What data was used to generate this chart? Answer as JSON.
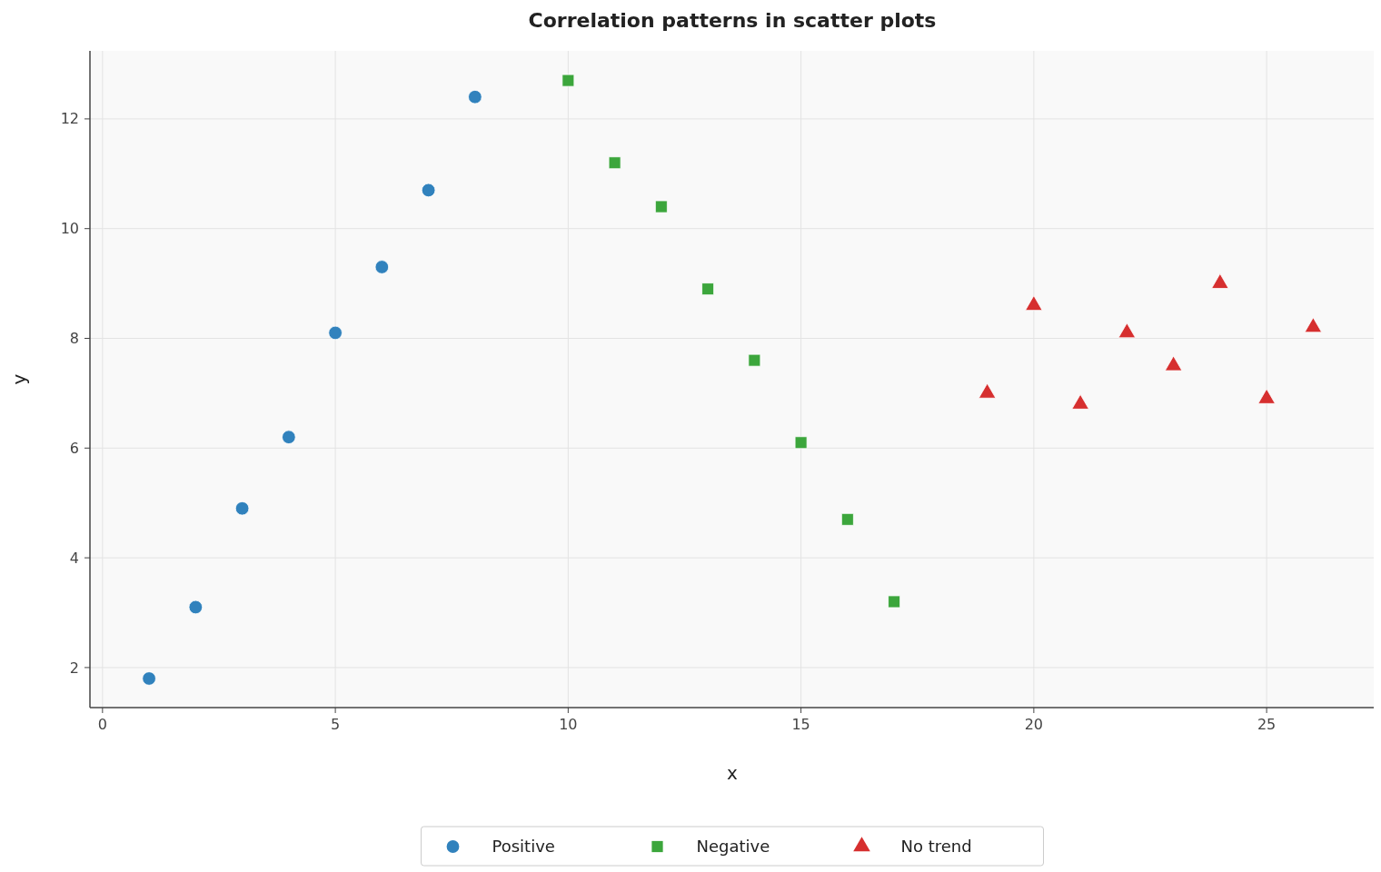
{
  "chart_data": {
    "type": "scatter",
    "title": "Correlation patterns in scatter plots",
    "xlabel": "x",
    "ylabel": "y",
    "xlim": [
      -0.27,
      27.3
    ],
    "ylim": [
      1.27,
      13.24
    ],
    "xticks": [
      0,
      5,
      10,
      15,
      20,
      25
    ],
    "yticks": [
      2,
      4,
      6,
      8,
      10,
      12
    ],
    "grid": true,
    "legend": "bottom",
    "series": [
      {
        "name": "Positive",
        "color": "#3182bd",
        "marker": "circle",
        "x": [
          1,
          2,
          3,
          4,
          5,
          6,
          7,
          8
        ],
        "values": [
          1.8,
          3.1,
          4.9,
          6.2,
          8.1,
          9.3,
          10.7,
          12.4
        ]
      },
      {
        "name": "Negative",
        "color": "#3ca63c",
        "marker": "square",
        "x": [
          10,
          11,
          12,
          13,
          14,
          15,
          16,
          17
        ],
        "values": [
          12.7,
          11.2,
          10.4,
          8.9,
          7.6,
          6.1,
          4.7,
          3.2
        ]
      },
      {
        "name": "No trend",
        "color": "#d62f2f",
        "marker": "triangle",
        "x": [
          19,
          20,
          21,
          22,
          23,
          24,
          25,
          26
        ],
        "values": [
          7.0,
          8.6,
          6.8,
          8.1,
          7.5,
          9.0,
          6.9,
          8.2
        ]
      }
    ]
  }
}
